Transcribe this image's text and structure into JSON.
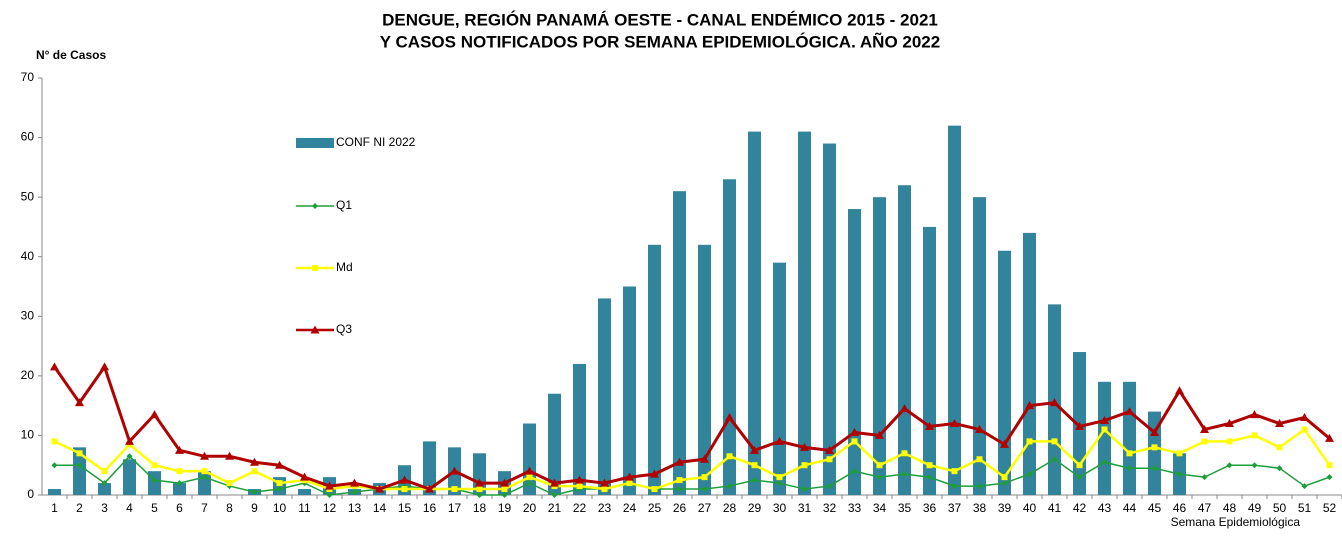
{
  "chart_data": {
    "type": "bar_line",
    "title": [
      "DENGUE, REGIÓN PANAMÁ OESTE - CANAL ENDÉMICO 2015 - 2021",
      "Y CASOS NOTIFICADOS POR SEMANA EPIDEMIOLÓGICA. AÑO 2022"
    ],
    "y_label": "N° de Casos",
    "x_label": "Semana Epidemiológica",
    "categories": [
      1,
      2,
      3,
      4,
      5,
      6,
      7,
      8,
      9,
      10,
      11,
      12,
      13,
      14,
      15,
      16,
      17,
      18,
      19,
      20,
      21,
      22,
      23,
      24,
      25,
      26,
      27,
      28,
      29,
      30,
      31,
      32,
      33,
      34,
      35,
      36,
      37,
      38,
      39,
      40,
      41,
      42,
      43,
      44,
      45,
      46,
      47,
      48,
      49,
      50,
      51,
      52
    ],
    "ylim": [
      0,
      70
    ],
    "yticks": [
      0,
      10,
      20,
      30,
      40,
      50,
      60,
      70
    ],
    "grid": false,
    "legend": "left",
    "series": [
      {
        "name": "CONF NI 2022",
        "type": "bar",
        "color": "#31849b",
        "values": [
          1,
          8,
          2,
          6,
          4,
          2,
          4,
          0,
          1,
          3,
          1,
          3,
          1,
          2,
          5,
          9,
          8,
          7,
          4,
          12,
          17,
          22,
          33,
          35,
          42,
          51,
          42,
          53,
          61,
          39,
          61,
          59,
          48,
          50,
          52,
          45,
          62,
          50,
          41,
          44,
          32,
          24,
          19,
          19,
          14,
          7,
          null,
          null,
          null,
          null,
          null,
          null
        ]
      },
      {
        "name": "Q1",
        "type": "line",
        "marker": "diamond",
        "color": "#1e9e3a",
        "values": [
          5,
          5,
          2,
          6.5,
          2.5,
          2,
          3,
          1.5,
          0.5,
          1,
          2,
          0,
          0.5,
          1,
          1.5,
          1,
          1,
          0,
          0,
          2,
          0,
          1,
          1,
          2,
          1,
          1,
          1,
          1.5,
          2.5,
          2,
          1,
          1.5,
          4,
          3,
          3.5,
          3,
          1.5,
          1.5,
          2,
          3.5,
          6,
          3,
          5.5,
          4.5,
          4.5,
          3.5,
          3,
          5,
          5,
          4.5,
          1.5,
          3
        ]
      },
      {
        "name": "Md",
        "type": "line",
        "marker": "square",
        "color": "#ffff00",
        "values": [
          9,
          7,
          4,
          8.5,
          5,
          4,
          4,
          2,
          4,
          2,
          2.5,
          1,
          1.5,
          1,
          1,
          1,
          1,
          1,
          1,
          3,
          1.5,
          1.5,
          1,
          2,
          1,
          2.5,
          3,
          6.5,
          5,
          3,
          5,
          6,
          9,
          5,
          7,
          5,
          4,
          6,
          3,
          9,
          9,
          5,
          11,
          7,
          8,
          7,
          9,
          9,
          10,
          8,
          11,
          5
        ]
      },
      {
        "name": "Q3",
        "type": "line",
        "marker": "triangle",
        "color": "#b00000",
        "values": [
          21.5,
          15.5,
          21.5,
          9,
          13.5,
          7.5,
          6.5,
          6.5,
          5.5,
          5,
          3,
          1.5,
          2,
          1,
          2.5,
          1,
          4,
          2,
          2,
          4,
          2,
          2.5,
          2,
          3,
          3.5,
          5.5,
          6,
          13,
          7.5,
          9,
          8,
          7.5,
          10.5,
          10,
          14.5,
          11.5,
          12,
          11,
          8.5,
          15,
          15.5,
          11.5,
          12.5,
          14,
          10.5,
          17.5,
          11,
          12,
          13.5,
          12,
          13,
          9.5
        ]
      }
    ]
  }
}
